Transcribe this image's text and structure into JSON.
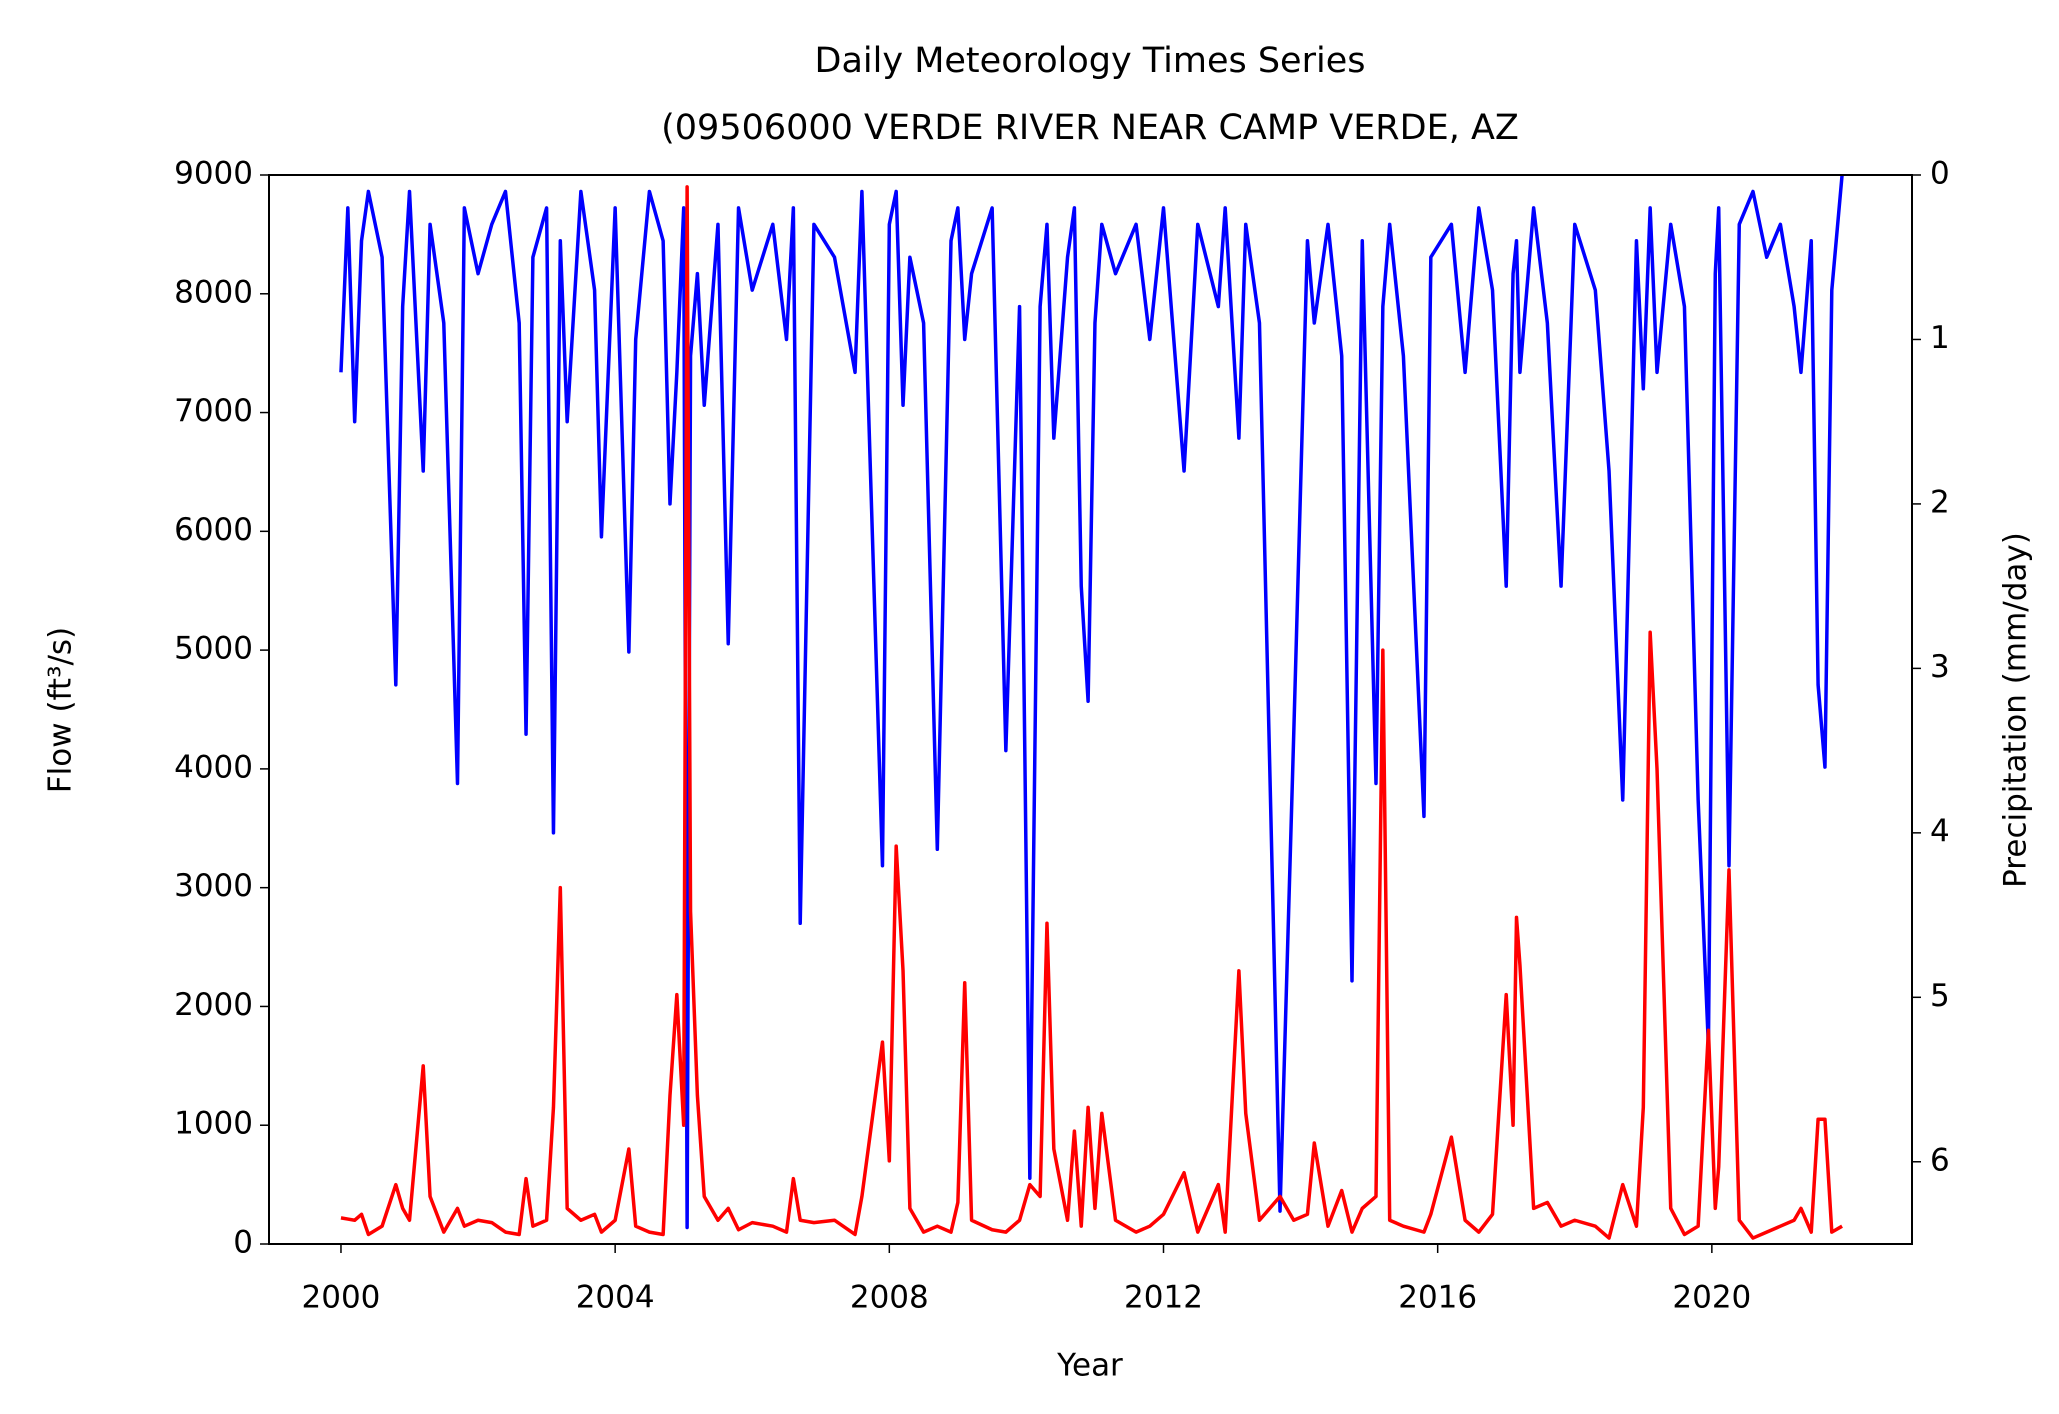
{
  "chart_data": {
    "type": "line",
    "title": "Daily Meteorology Times Series",
    "subtitle": "(09506000 VERDE RIVER NEAR CAMP VERDE, AZ",
    "x_label": "Year",
    "y_label": "Flow (ft³/s)",
    "y2_label": "Precipitation (mm/day)",
    "x": [
      2000.0,
      2000.1,
      2000.2,
      2000.3,
      2000.4,
      2000.6,
      2000.8,
      2000.9,
      2001.0,
      2001.2,
      2001.3,
      2001.5,
      2001.7,
      2001.8,
      2002.0,
      2002.2,
      2002.4,
      2002.6,
      2002.7,
      2002.8,
      2003.0,
      2003.1,
      2003.2,
      2003.3,
      2003.5,
      2003.7,
      2003.8,
      2004.0,
      2004.2,
      2004.3,
      2004.5,
      2004.7,
      2004.8,
      2004.9,
      2005.0,
      2005.05,
      2005.1,
      2005.2,
      2005.3,
      2005.5,
      2005.65,
      2005.8,
      2006.0,
      2006.3,
      2006.5,
      2006.6,
      2006.7,
      2006.9,
      2007.2,
      2007.5,
      2007.6,
      2007.9,
      2008.0,
      2008.1,
      2008.2,
      2008.3,
      2008.5,
      2008.7,
      2008.9,
      2009.0,
      2009.1,
      2009.2,
      2009.5,
      2009.7,
      2009.9,
      2010.05,
      2010.2,
      2010.3,
      2010.4,
      2010.6,
      2010.7,
      2010.8,
      2010.9,
      2011.0,
      2011.1,
      2011.3,
      2011.6,
      2011.8,
      2012.0,
      2012.3,
      2012.5,
      2012.8,
      2012.9,
      2013.1,
      2013.2,
      2013.4,
      2013.7,
      2013.9,
      2014.1,
      2014.2,
      2014.4,
      2014.6,
      2014.75,
      2014.9,
      2015.1,
      2015.2,
      2015.3,
      2015.5,
      2015.8,
      2015.9,
      2016.2,
      2016.4,
      2016.6,
      2016.8,
      2017.0,
      2017.1,
      2017.15,
      2017.2,
      2017.4,
      2017.6,
      2017.8,
      2018.0,
      2018.3,
      2018.5,
      2018.7,
      2018.9,
      2019.0,
      2019.1,
      2019.2,
      2019.4,
      2019.6,
      2019.8,
      2019.95,
      2020.05,
      2020.1,
      2020.25,
      2020.4,
      2020.6,
      2020.8,
      2021.0,
      2021.2,
      2021.3,
      2021.45,
      2021.55,
      2021.65,
      2021.75,
      2021.9
    ],
    "series": [
      {
        "color": "#0000ff",
        "axis": "y2",
        "values": [
          1.2,
          0.2,
          1.5,
          0.4,
          0.1,
          0.5,
          3.1,
          0.8,
          0.1,
          1.8,
          0.3,
          0.9,
          3.7,
          0.2,
          0.6,
          0.3,
          0.1,
          0.9,
          3.4,
          0.5,
          0.2,
          4.0,
          0.4,
          1.5,
          0.1,
          0.7,
          2.2,
          0.2,
          2.9,
          1.0,
          0.1,
          0.4,
          2.0,
          1.2,
          0.2,
          6.4,
          1.1,
          0.6,
          1.4,
          0.3,
          2.85,
          0.2,
          0.7,
          0.3,
          1.0,
          0.2,
          4.55,
          0.3,
          0.5,
          1.2,
          0.1,
          4.2,
          0.3,
          0.1,
          1.4,
          0.5,
          0.9,
          4.1,
          0.4,
          0.2,
          1.0,
          0.6,
          0.2,
          3.5,
          0.8,
          6.1,
          0.8,
          0.3,
          1.6,
          0.5,
          0.2,
          2.5,
          3.2,
          0.9,
          0.3,
          0.6,
          0.3,
          1.0,
          0.2,
          1.8,
          0.3,
          0.8,
          0.2,
          1.6,
          0.3,
          0.9,
          6.3,
          3.4,
          0.4,
          0.9,
          0.3,
          1.1,
          4.9,
          0.4,
          3.7,
          0.8,
          0.3,
          1.1,
          3.9,
          0.5,
          0.3,
          1.2,
          0.2,
          0.7,
          2.5,
          0.6,
          0.4,
          1.2,
          0.2,
          0.9,
          2.5,
          0.3,
          0.7,
          1.8,
          3.8,
          0.4,
          1.3,
          0.2,
          1.2,
          0.3,
          0.8,
          3.8,
          5.3,
          0.6,
          0.2,
          4.2,
          0.3,
          0.1,
          0.5,
          0.3,
          0.8,
          1.2,
          0.4,
          3.1,
          3.6,
          0.7,
          0.0
        ]
      },
      {
        "color": "#ff0000",
        "values": [
          220,
          210,
          200,
          250,
          80,
          150,
          500,
          300,
          200,
          1500,
          400,
          100,
          300,
          150,
          200,
          180,
          100,
          80,
          550,
          150,
          200,
          1150,
          3000,
          300,
          200,
          250,
          100,
          200,
          800,
          150,
          100,
          80,
          1250,
          2100,
          1000,
          8900,
          2800,
          1250,
          400,
          200,
          300,
          120,
          180,
          150,
          100,
          550,
          200,
          180,
          200,
          80,
          400,
          1700,
          700,
          3350,
          2300,
          300,
          100,
          150,
          100,
          350,
          2200,
          200,
          120,
          100,
          200,
          500,
          400,
          2700,
          800,
          200,
          950,
          150,
          1150,
          300,
          1100,
          200,
          100,
          150,
          250,
          600,
          100,
          500,
          100,
          2300,
          1100,
          200,
          400,
          200,
          250,
          850,
          150,
          450,
          100,
          300,
          400,
          5000,
          200,
          150,
          100,
          250,
          900,
          200,
          100,
          250,
          2100,
          1000,
          2750,
          2350,
          300,
          350,
          150,
          200,
          150,
          50,
          500,
          150,
          1150,
          5150,
          4000,
          300,
          80,
          150,
          1800,
          300,
          650,
          3150,
          200,
          50,
          100,
          150,
          200,
          300,
          100,
          1050,
          1050,
          100,
          150
        ]
      }
    ],
    "xlim": [
      1998.95,
      2022.92
    ],
    "xticks": [
      2000,
      2004,
      2008,
      2012,
      2016,
      2020
    ],
    "ylim": [
      0,
      9000
    ],
    "yticks": [
      0,
      1000,
      2000,
      3000,
      4000,
      5000,
      6000,
      7000,
      8000,
      9000
    ],
    "y2lim": [
      6.5,
      0
    ],
    "y2ticks": [
      0,
      1,
      2,
      3,
      4,
      5,
      6
    ],
    "grid": false
  }
}
